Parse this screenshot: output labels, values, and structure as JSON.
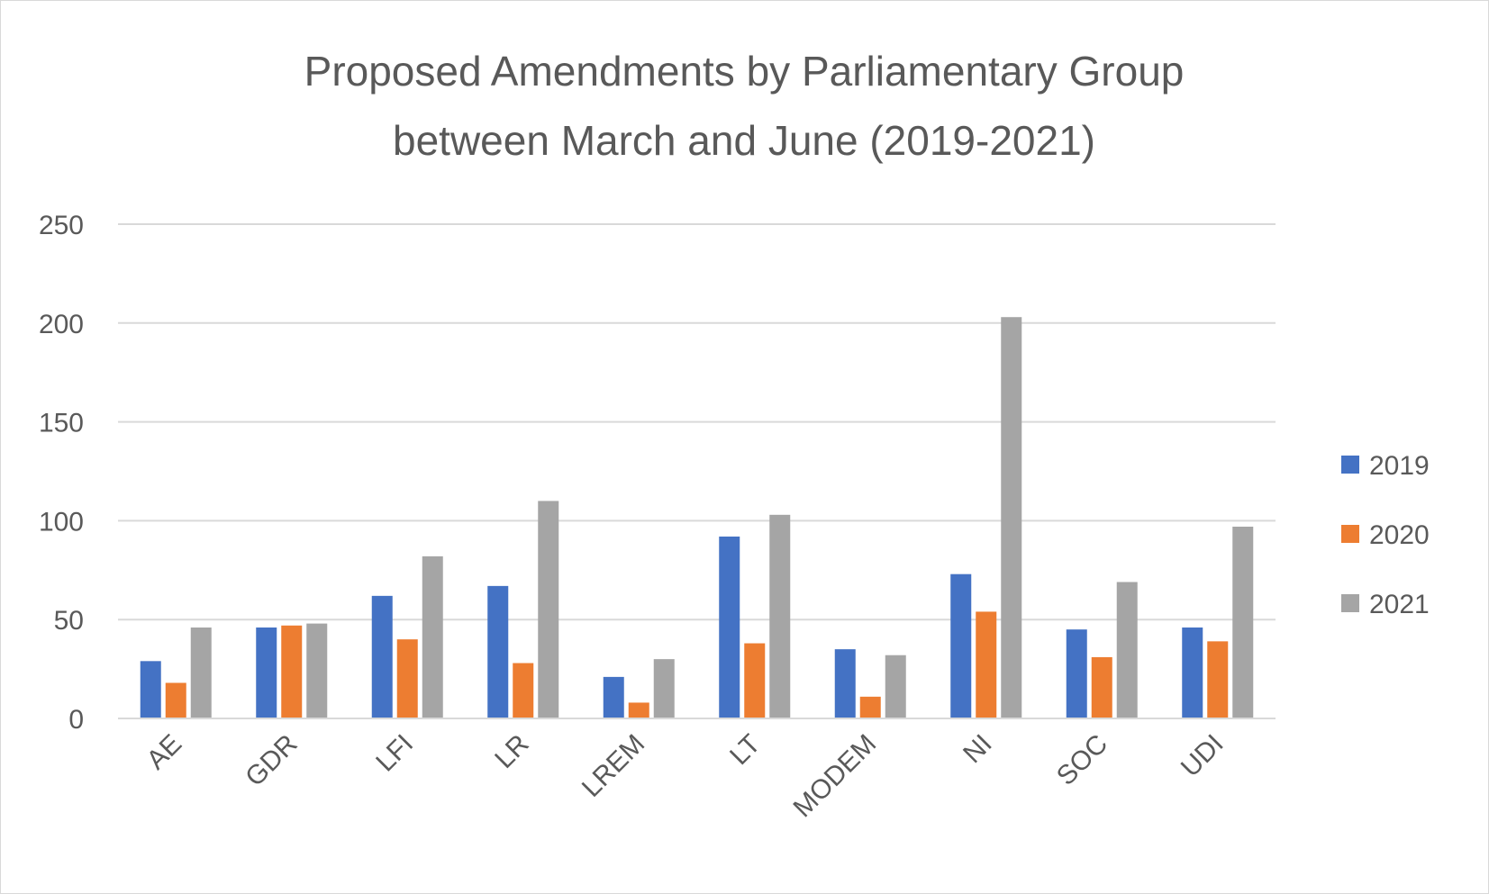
{
  "chart_data": {
    "type": "bar",
    "title_lines": [
      "Proposed Amendments by Parliamentary Group",
      "between March and June (2019-2021)"
    ],
    "categories": [
      "AE",
      "GDR",
      "LFI",
      "LR",
      "LREM",
      "LT",
      "MODEM",
      "NI",
      "SOC",
      "UDI"
    ],
    "series": [
      {
        "name": "2019",
        "color": "#4472c4",
        "values": [
          29,
          46,
          62,
          67,
          21,
          92,
          35,
          73,
          45,
          46
        ]
      },
      {
        "name": "2020",
        "color": "#ed7d31",
        "values": [
          18,
          47,
          40,
          28,
          8,
          38,
          11,
          54,
          31,
          39
        ]
      },
      {
        "name": "2021",
        "color": "#a5a5a5",
        "values": [
          46,
          48,
          82,
          110,
          30,
          103,
          32,
          203,
          69,
          97
        ]
      }
    ],
    "y_ticks": [
      0,
      50,
      100,
      150,
      200,
      250
    ],
    "ylim": [
      0,
      250
    ],
    "xlabel": "",
    "ylabel": "",
    "grid": true,
    "legend_position": "right"
  }
}
